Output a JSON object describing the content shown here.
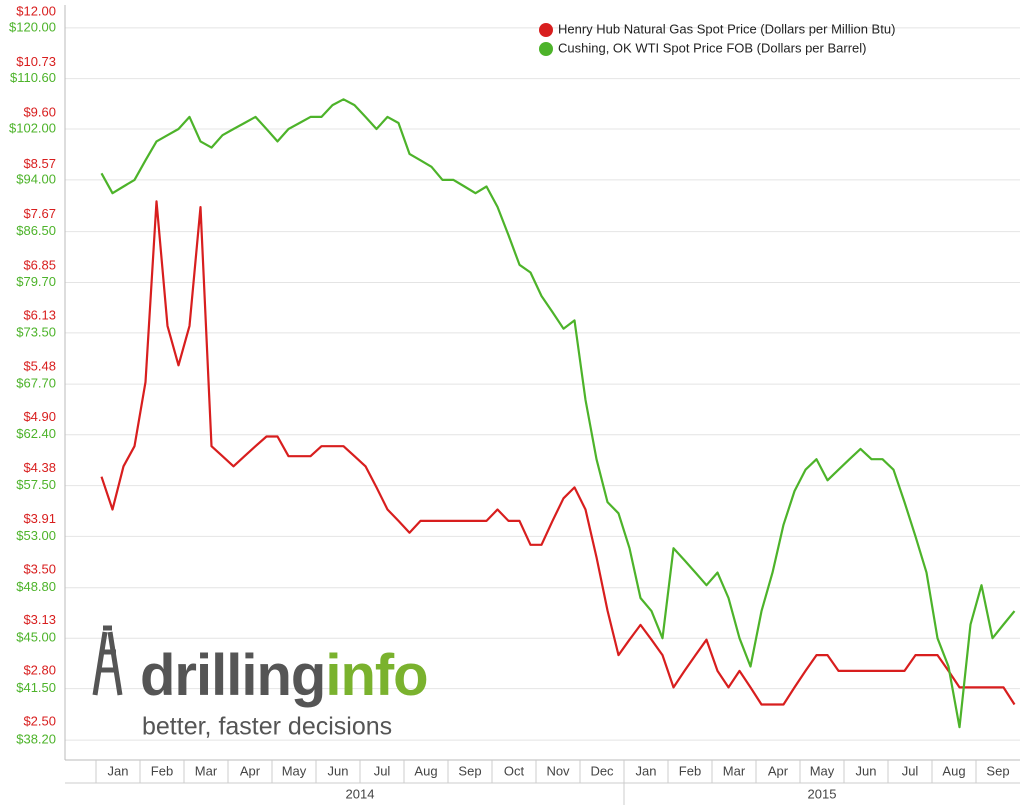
{
  "chart_data": {
    "type": "line",
    "log_scale": true,
    "grid": true,
    "legend": "top-right",
    "categories": [
      "Jan",
      null,
      null,
      null,
      "Feb",
      null,
      null,
      null,
      "Mar",
      null,
      null,
      null,
      "Apr",
      null,
      null,
      null,
      "May",
      null,
      null,
      null,
      "Jun",
      null,
      null,
      null,
      "Jul",
      null,
      null,
      null,
      "Aug",
      null,
      null,
      null,
      "Sep",
      null,
      null,
      null,
      "Oct",
      null,
      null,
      null,
      "Nov",
      null,
      null,
      null,
      "Dec",
      null,
      null,
      null,
      "Jan",
      null,
      null,
      null,
      "Feb",
      null,
      null,
      null,
      "Mar",
      null,
      null,
      null,
      "Apr",
      null,
      null,
      null,
      "May",
      null,
      null,
      null,
      "Jun",
      null,
      null,
      null,
      "Jul",
      null,
      null,
      null,
      "Aug",
      null,
      null,
      null,
      "Sep",
      null,
      null,
      null
    ],
    "years": [
      "2014",
      "2015"
    ],
    "ylim": [
      2.3,
      12.19
    ],
    "yticks": [
      {
        "value": 12,
        "label": "$12.00"
      },
      {
        "value": 10.73,
        "label": "$10.73"
      },
      {
        "value": 9.6,
        "label": "$9.60"
      },
      {
        "value": 8.57,
        "label": "$8.57"
      },
      {
        "value": 7.67,
        "label": "$7.67"
      },
      {
        "value": 6.85,
        "label": "$6.85"
      },
      {
        "value": 6.13,
        "label": "$6.13"
      },
      {
        "value": 5.48,
        "label": "$5.48"
      },
      {
        "value": 4.9,
        "label": "$4.90"
      },
      {
        "value": 4.38,
        "label": "$4.38"
      },
      {
        "value": 3.91,
        "label": "$3.91"
      },
      {
        "value": 3.5,
        "label": "$3.50"
      },
      {
        "value": 3.13,
        "label": "$3.13"
      },
      {
        "value": 2.8,
        "label": "$2.80"
      },
      {
        "value": 2.5,
        "label": "$2.50"
      }
    ],
    "y2lim": [
      37.0,
      124.5
    ],
    "y2ticks": [
      {
        "value": 120,
        "label": "$120.00"
      },
      {
        "value": 110.6,
        "label": "$110.60"
      },
      {
        "value": 102,
        "label": "$102.00"
      },
      {
        "value": 94,
        "label": "$94.00"
      },
      {
        "value": 86.5,
        "label": "$86.50"
      },
      {
        "value": 79.7,
        "label": "$79.70"
      },
      {
        "value": 73.5,
        "label": "$73.50"
      },
      {
        "value": 67.7,
        "label": "$67.70"
      },
      {
        "value": 62.4,
        "label": "$62.40"
      },
      {
        "value": 57.5,
        "label": "$57.50"
      },
      {
        "value": 53,
        "label": "$53.00"
      },
      {
        "value": 48.8,
        "label": "$48.80"
      },
      {
        "value": 45,
        "label": "$45.00"
      },
      {
        "value": 41.5,
        "label": "$41.50"
      },
      {
        "value": 38.2,
        "label": "$38.20"
      }
    ],
    "series": [
      {
        "name": "Henry Hub Natural Gas Spot Price (Dollars per Million Btu)",
        "color": "#d81e1e",
        "values": [
          4.3,
          4.0,
          4.4,
          4.6,
          5.3,
          7.9,
          6.0,
          5.5,
          6.0,
          7.8,
          4.6,
          4.5,
          4.4,
          4.5,
          4.6,
          4.7,
          4.7,
          4.5,
          4.5,
          4.5,
          4.6,
          4.6,
          4.6,
          4.5,
          4.4,
          4.2,
          4.0,
          3.9,
          3.8,
          3.9,
          3.9,
          3.9,
          3.9,
          3.9,
          3.9,
          3.9,
          4.0,
          3.9,
          3.9,
          3.7,
          3.7,
          3.9,
          4.1,
          4.2,
          4.0,
          3.6,
          3.2,
          2.9,
          3.0,
          3.1,
          3.0,
          2.9,
          2.7,
          2.8,
          2.9,
          3.0,
          2.8,
          2.7,
          2.8,
          2.7,
          2.6,
          2.6,
          2.6,
          2.7,
          2.8,
          2.9,
          2.9,
          2.8,
          2.8,
          2.8,
          2.8,
          2.8,
          2.8,
          2.8,
          2.9,
          2.9,
          2.9,
          2.8,
          2.7,
          2.7,
          2.7,
          2.7,
          2.7,
          2.6
        ]
      },
      {
        "name": "Cushing, OK WTI Spot Price FOB (Dollars per Barrel)",
        "color": "#4db32a",
        "axis": "y2",
        "values": [
          95,
          92,
          93,
          94,
          97,
          100,
          101,
          102,
          104,
          100,
          99,
          101,
          102,
          103,
          104,
          102,
          100,
          102,
          103,
          104,
          104,
          106,
          107,
          106,
          104,
          102,
          104,
          103,
          98,
          97,
          96,
          94,
          94,
          93,
          92,
          93,
          90,
          86,
          82,
          81,
          78,
          76,
          74,
          75,
          66,
          60,
          56,
          55,
          52,
          48,
          47,
          45,
          52,
          51,
          50,
          49,
          50,
          48,
          45,
          43,
          47,
          50,
          54,
          57,
          59,
          60,
          58,
          59,
          60,
          61,
          60,
          60,
          59,
          56,
          53,
          50,
          45,
          43,
          39,
          46,
          49,
          45,
          46,
          47
        ]
      }
    ]
  },
  "logo": {
    "word_1": "drilling",
    "word_2": "info",
    "tagline": "better, faster decisions"
  }
}
